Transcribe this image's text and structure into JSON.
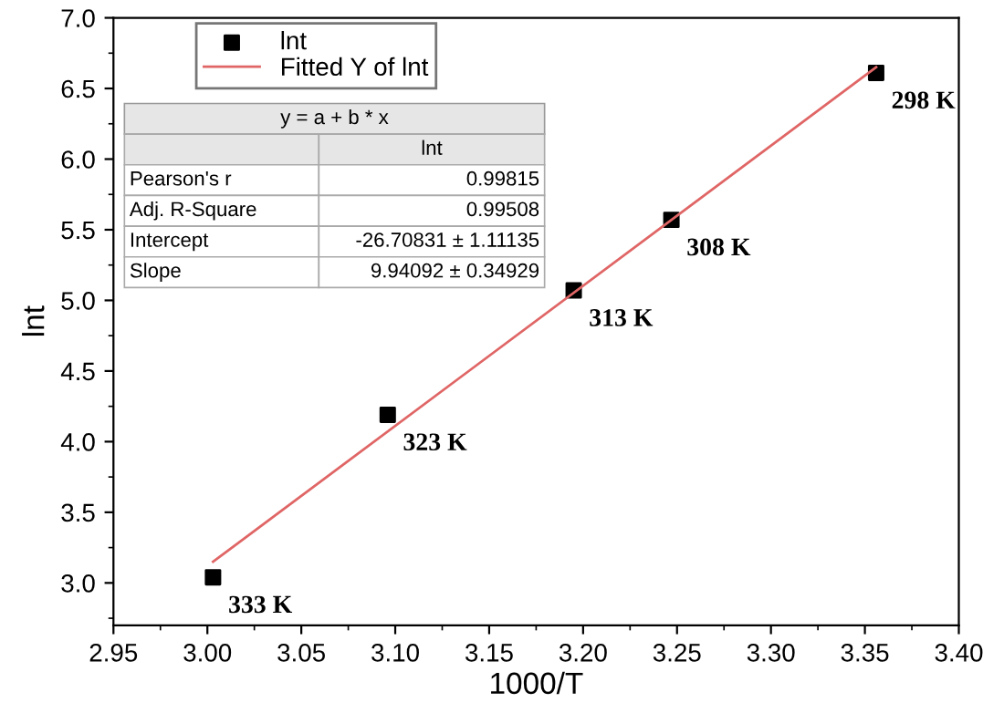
{
  "chart_data": {
    "type": "scatter",
    "xlabel": "1000/T",
    "ylabel": "lnt",
    "xlim": [
      2.95,
      3.4
    ],
    "xticks": [
      {
        "value": 2.95,
        "label": "2.95"
      },
      {
        "value": 3.0,
        "label": "3.00"
      },
      {
        "value": 3.05,
        "label": "3.05"
      },
      {
        "value": 3.1,
        "label": "3.10"
      },
      {
        "value": 3.15,
        "label": "3.15"
      },
      {
        "value": 3.2,
        "label": "3.20"
      },
      {
        "value": 3.25,
        "label": "3.25"
      },
      {
        "value": 3.3,
        "label": "3.30"
      },
      {
        "value": 3.35,
        "label": "3.35"
      },
      {
        "value": 3.4,
        "label": "3.40"
      }
    ],
    "ylim": [
      2.7,
      7.0
    ],
    "yticks": [
      {
        "value": 3.0,
        "label": "3.0"
      },
      {
        "value": 3.5,
        "label": "3.5"
      },
      {
        "value": 4.0,
        "label": "4.0"
      },
      {
        "value": 4.5,
        "label": "4.5"
      },
      {
        "value": 5.0,
        "label": "5.0"
      },
      {
        "value": 5.5,
        "label": "5.5"
      },
      {
        "value": 6.0,
        "label": "6.0"
      },
      {
        "value": 6.5,
        "label": "6.5"
      },
      {
        "value": 7.0,
        "label": "7.0"
      }
    ],
    "legend": "top left",
    "grid": false,
    "series": [
      {
        "name": "lnt",
        "marker": "square",
        "color": "#000000",
        "x": [
          3.003,
          3.096,
          3.195,
          3.247,
          3.356
        ],
        "values": [
          3.04,
          4.19,
          5.07,
          5.57,
          6.61
        ]
      },
      {
        "name": "Fitted Y of lnt",
        "type": "line",
        "marker": "none",
        "line_style": "solid",
        "color": "#e06666",
        "x": [
          3.003,
          3.356
        ],
        "values": [
          3.15,
          6.65
        ]
      }
    ],
    "annotations": [
      {
        "text": "333 K",
        "x": 3.003,
        "y": 3.04
      },
      {
        "text": "323 K",
        "x": 3.096,
        "y": 4.19
      },
      {
        "text": "313 K",
        "x": 3.195,
        "y": 5.07
      },
      {
        "text": "308 K",
        "x": 3.247,
        "y": 5.57
      },
      {
        "text": "298 K",
        "x": 3.356,
        "y": 6.61
      },
      "y = a + b * x",
      "lnt",
      "Pearson's r",
      "0.99815",
      "Adj. R-Square",
      "0.99508",
      "Intercept",
      "-26.70831 ± 1.11135",
      "Slope",
      "9.94092 ± 0.34929"
    ]
  }
}
